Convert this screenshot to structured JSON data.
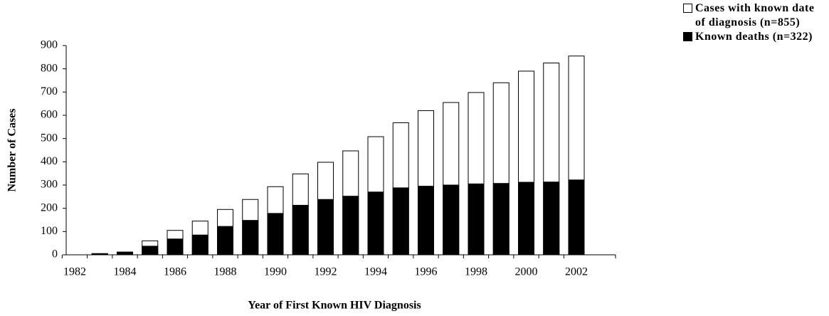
{
  "chart_data": {
    "type": "bar",
    "x_label": "Year of First Known HIV Diagnosis",
    "y_label": "Number of Cases",
    "categories": [
      "1982",
      null,
      "1984",
      null,
      "1986",
      null,
      "1988",
      null,
      "1990",
      null,
      "1992",
      null,
      "1994",
      null,
      "1996",
      null,
      "1998",
      null,
      "2000",
      null,
      "2002"
    ],
    "series": [
      {
        "name": "Cases with known date of diagnosis (n=855)",
        "color": "#ffffff",
        "values": [
          0,
          5,
          12,
          60,
          105,
          145,
          195,
          238,
          293,
          348,
          398,
          447,
          508,
          568,
          620,
          655,
          698,
          740,
          790,
          825,
          855
        ]
      },
      {
        "name": "Known deaths (n=322)",
        "color": "#000000",
        "values": [
          0,
          5,
          10,
          37,
          68,
          85,
          122,
          148,
          178,
          213,
          238,
          252,
          270,
          288,
          295,
          300,
          305,
          307,
          312,
          313,
          322
        ]
      }
    ],
    "ylim": [
      0,
      900
    ],
    "yticks": [
      0,
      100,
      200,
      300,
      400,
      500,
      600,
      700,
      800,
      900
    ],
    "legend": "top-right"
  }
}
